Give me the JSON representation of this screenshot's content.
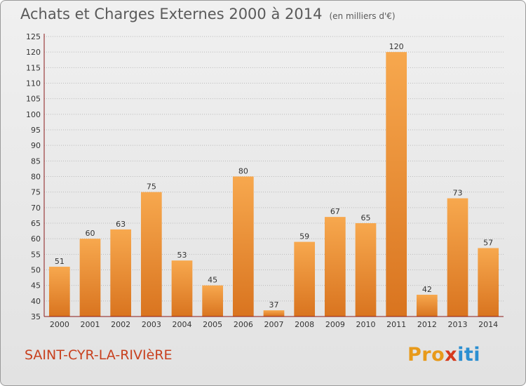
{
  "header": {
    "title": "Achats et Charges Externes 2000 à 2014",
    "unit": "(en milliers d'€)"
  },
  "footer": {
    "place": "SAINT-CYR-LA-RIVIèRE",
    "brand_pro": "Pro",
    "brand_x": "x",
    "brand_iti": "iti"
  },
  "colors": {
    "bar_top": "#f7a84e",
    "bar_bottom": "#d9741f",
    "axis": "#8b1a1a",
    "grid": "#bbbbbb",
    "text": "#333333",
    "place": "#c8401e"
  },
  "chart_data": {
    "type": "bar",
    "title": "Achats et Charges Externes 2000 à 2014",
    "subtitle": "(en milliers d'€)",
    "xlabel": "",
    "ylabel": "",
    "categories": [
      "2000",
      "2001",
      "2002",
      "2003",
      "2004",
      "2005",
      "2006",
      "2007",
      "2008",
      "2009",
      "2010",
      "2011",
      "2012",
      "2013",
      "2014"
    ],
    "values": [
      51,
      60,
      63,
      75,
      53,
      45,
      80,
      37,
      59,
      67,
      65,
      120,
      42,
      73,
      57
    ],
    "ylim": [
      35,
      125
    ],
    "yticks": [
      35,
      40,
      45,
      50,
      55,
      60,
      65,
      70,
      75,
      80,
      85,
      90,
      95,
      100,
      105,
      110,
      115,
      120,
      125
    ],
    "grid": true,
    "data_labels": true
  }
}
